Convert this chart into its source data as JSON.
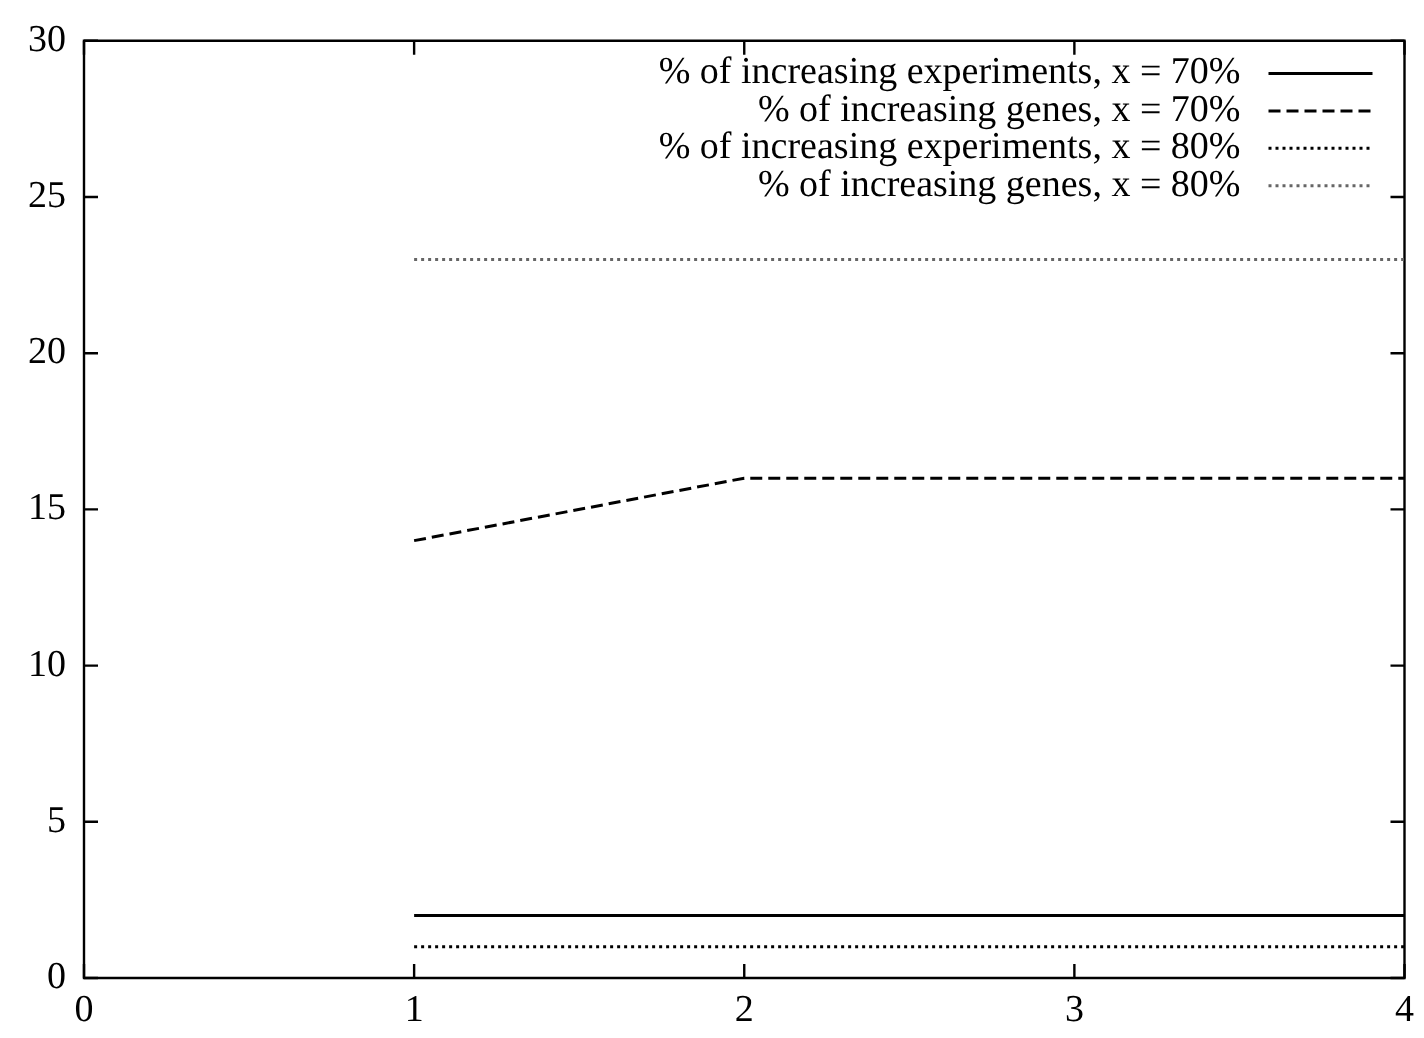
{
  "chart_data": {
    "type": "line",
    "x": [
      1,
      2,
      3,
      4
    ],
    "series": [
      {
        "name": "% of increasing experiments, x = 70%",
        "color": "#000000",
        "line_style": "solid",
        "values": [
          2,
          2,
          2,
          2
        ]
      },
      {
        "name": "% of increasing genes, x = 70%",
        "color": "#000000",
        "line_style": "dashed",
        "values": [
          14,
          16,
          16,
          16
        ]
      },
      {
        "name": "% of increasing experiments, x = 80%",
        "color": "#000000",
        "line_style": "dotted",
        "values": [
          1,
          1,
          1,
          1
        ]
      },
      {
        "name": "% of increasing genes, x = 80%",
        "color": "#666666",
        "line_style": "dotted",
        "values": [
          23,
          23,
          23,
          23
        ]
      }
    ],
    "xlim": [
      0,
      4
    ],
    "xticks": [
      0,
      1,
      2,
      3,
      4
    ],
    "ylim": [
      0,
      30
    ],
    "yticks": [
      0,
      5,
      10,
      15,
      20,
      25,
      30
    ],
    "grid": false,
    "legend": "top right",
    "marker": "none"
  }
}
